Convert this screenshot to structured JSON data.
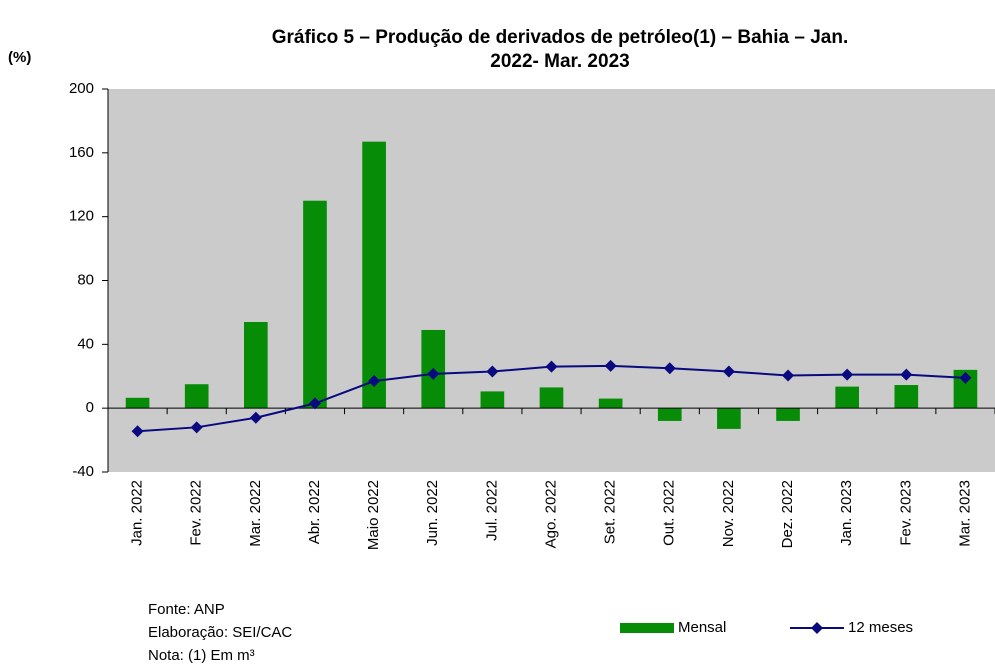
{
  "chart_data": {
    "type": "bar_line",
    "title_lines": [
      "Gráfico 5 – Produção de derivados de petróleo(1) – Bahia – Jan.",
      "2022- Mar. 2023"
    ],
    "y_axis_label": "(%)",
    "categories": [
      "Jan. 2022",
      "Fev. 2022",
      "Mar. 2022",
      "Abr. 2022",
      "Maio 2022",
      "Jun. 2022",
      "Jul. 2022",
      "Ago. 2022",
      "Set. 2022",
      "Out. 2022",
      "Nov. 2022",
      "Dez. 2022",
      "Jan. 2023",
      "Fev. 2023",
      "Mar. 2023"
    ],
    "series": [
      {
        "name": "Mensal",
        "color": "#078c07",
        "kind": "bar",
        "values": [
          6.5,
          15,
          54,
          130,
          167,
          49,
          10.5,
          13,
          6,
          -8,
          -13,
          -8,
          13.5,
          14.5,
          24
        ]
      },
      {
        "name": "12 meses",
        "color": "#0a0a80",
        "kind": "line",
        "values": [
          -14.5,
          -12,
          -6,
          3,
          17,
          21.5,
          23,
          26,
          26.5,
          25,
          23,
          20.5,
          21,
          21,
          19
        ]
      }
    ],
    "ylim": [
      -40,
      200
    ],
    "yticks": [
      -40,
      0,
      40,
      80,
      120,
      160,
      200
    ],
    "plot_background": "#cbcbcb",
    "notes": [
      "Fonte: ANP",
      "Elaboração: SEI/CAC",
      "Nota:  (1) Em m³"
    ]
  }
}
